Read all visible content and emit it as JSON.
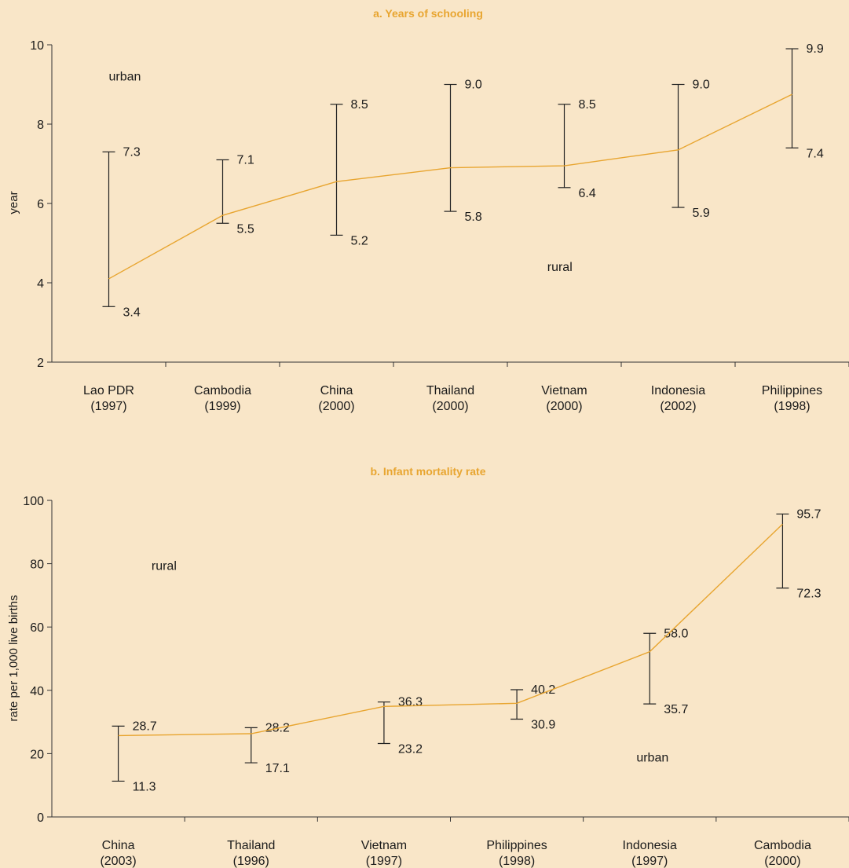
{
  "colors": {
    "background": "#f9e6c8",
    "accent": "#e8a530",
    "ink": "#1a1a1a"
  },
  "chart_data": [
    {
      "type": "line",
      "title": "a. Years of schooling",
      "ylabel": "year",
      "xlabel": "",
      "ylim": [
        2,
        10
      ],
      "yticks": [
        2,
        4,
        6,
        8,
        10
      ],
      "grid": false,
      "categories": [
        [
          "Lao PDR",
          "(1997)"
        ],
        [
          "Cambodia",
          "(1999)"
        ],
        [
          "China",
          "(2000)"
        ],
        [
          "Thailand",
          "(2000)"
        ],
        [
          "Vietnam",
          "(2000)"
        ],
        [
          "Indonesia",
          "(2002)"
        ],
        [
          "Philippines",
          "(1998)"
        ]
      ],
      "series": [
        {
          "values": [
            4.1,
            5.7,
            6.55,
            6.9,
            6.95,
            7.35,
            8.75
          ]
        }
      ],
      "ranges": [
        {
          "low": 3.4,
          "high": 7.3,
          "low_label": "3.4",
          "high_label": "7.3"
        },
        {
          "low": 5.5,
          "high": 7.1,
          "low_label": "5.5",
          "high_label": "7.1"
        },
        {
          "low": 5.2,
          "high": 8.5,
          "low_label": "5.2",
          "high_label": "8.5"
        },
        {
          "low": 5.8,
          "high": 9.0,
          "low_label": "5.8",
          "high_label": "9.0"
        },
        {
          "low": 6.4,
          "high": 8.5,
          "low_label": "6.4",
          "high_label": "8.5"
        },
        {
          "low": 5.9,
          "high": 9.0,
          "low_label": "5.9",
          "high_label": "9.0"
        },
        {
          "low": 7.4,
          "high": 9.9,
          "low_label": "7.4",
          "high_label": "9.9"
        }
      ],
      "annotations": [
        {
          "text": "urban",
          "category": 0.5,
          "value": 9.1
        },
        {
          "text": "rural",
          "category": 4.35,
          "value": 4.3
        }
      ]
    },
    {
      "type": "line",
      "title": "b. Infant mortality rate",
      "ylabel": "rate per 1,000 live births",
      "xlabel": "",
      "ylim": [
        0,
        100
      ],
      "yticks": [
        0,
        20,
        40,
        60,
        80,
        100
      ],
      "grid": false,
      "categories": [
        [
          "China",
          "(2003)"
        ],
        [
          "Thailand",
          "(1996)"
        ],
        [
          "Vietnam",
          "(1997)"
        ],
        [
          "Philippines",
          "(1998)"
        ],
        [
          "Indonesia",
          "(1997)"
        ],
        [
          "Cambodia",
          "(2000)"
        ]
      ],
      "series": [
        {
          "values": [
            25.7,
            26.3,
            34.9,
            35.9,
            52.2,
            92.5
          ]
        }
      ],
      "ranges": [
        {
          "low": 11.3,
          "high": 28.7,
          "low_label": "11.3",
          "high_label": "28.7"
        },
        {
          "low": 17.1,
          "high": 28.2,
          "low_label": "17.1",
          "high_label": "28.2"
        },
        {
          "low": 23.2,
          "high": 36.3,
          "low_label": "23.2",
          "high_label": "36.3"
        },
        {
          "low": 30.9,
          "high": 40.2,
          "low_label": "30.9",
          "high_label": "40.2"
        },
        {
          "low": 35.7,
          "high": 58.0,
          "low_label": "35.7",
          "high_label": "58.0"
        },
        {
          "low": 72.3,
          "high": 95.7,
          "low_label": "72.3",
          "high_label": "95.7"
        }
      ],
      "annotations": [
        {
          "text": "rural",
          "category": 0.75,
          "value": 78
        },
        {
          "text": "urban",
          "category": 4.4,
          "value": 17.5
        }
      ]
    }
  ]
}
